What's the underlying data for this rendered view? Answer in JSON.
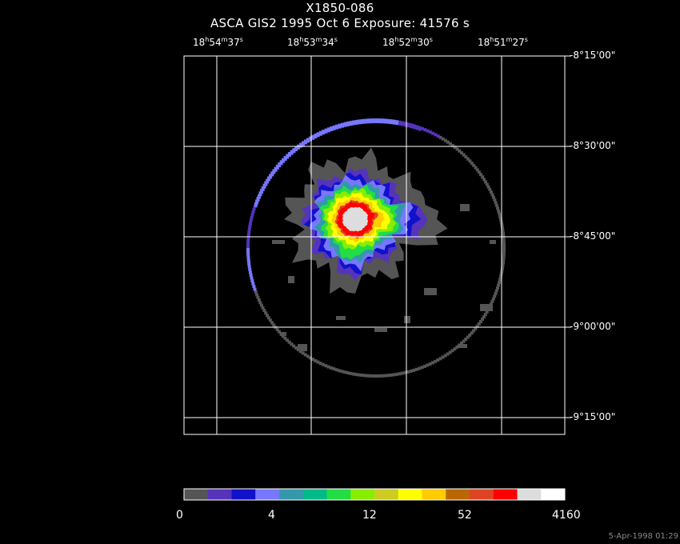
{
  "header": {
    "source_name": "X1850-086",
    "observation_line": "ASCA GIS2    1995 Oct  6    Exposure: 41576 s"
  },
  "chart_data": {
    "type": "heatmap",
    "title": "X1850-086",
    "subtitle": "ASCA GIS2    1995 Oct  6    Exposure: 41576 s",
    "ra_labels": [
      {
        "h": "18",
        "m": "54",
        "s": "37"
      },
      {
        "h": "18",
        "m": "53",
        "s": "34"
      },
      {
        "h": "18",
        "m": "52",
        "s": "30"
      },
      {
        "h": "18",
        "m": "51",
        "s": "27"
      }
    ],
    "dec_labels": [
      "-8°15'00\"",
      "-8°30'00\"",
      "-8°45'00\"",
      "-9°00'00\"",
      "-9°15'00\""
    ],
    "grid": true,
    "colorbar": {
      "colors": [
        "#555555",
        "#5533bb",
        "#1111cc",
        "#7777ff",
        "#3399aa",
        "#00bb88",
        "#22dd44",
        "#88ee00",
        "#cccc22",
        "#ffff00",
        "#ffcc00",
        "#bb6600",
        "#dd4422",
        "#ff0000",
        "#dddddd",
        "#ffffff"
      ],
      "tick_labels": [
        "0",
        "4",
        "12",
        "52",
        "4160"
      ]
    }
  },
  "footer": {
    "timestamp": "5-Apr-1998 01:29"
  }
}
